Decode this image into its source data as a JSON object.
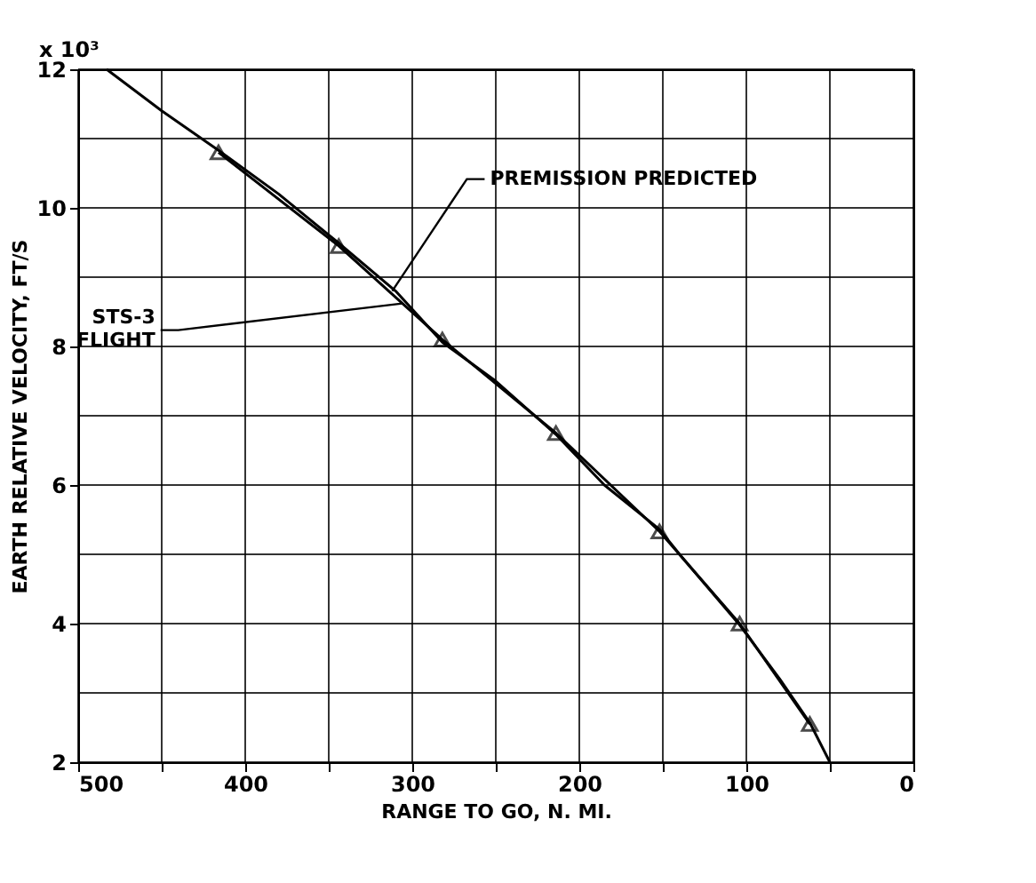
{
  "chart_data": {
    "type": "line",
    "xlabel": "RANGE TO GO, N. MI.",
    "ylabel": "EARTH RELATIVE VELOCITY, FT/S",
    "xlim": [
      500,
      0
    ],
    "ylim": [
      2,
      12
    ],
    "xticks": [
      500,
      {
        "value": 450,
        "label": null
      },
      400,
      {
        "value": 350,
        "label": null
      },
      300,
      {
        "value": 250,
        "label": null
      },
      200,
      {
        "value": 150,
        "label": null
      },
      100,
      {
        "value": 50,
        "label": null
      },
      0
    ],
    "yticks": [
      2,
      {
        "value": 3,
        "label": null
      },
      4,
      {
        "value": 5,
        "label": null
      },
      6,
      {
        "value": 7,
        "label": null
      },
      8,
      {
        "value": 9,
        "label": null
      },
      10,
      {
        "value": 11,
        "label": null
      },
      12
    ],
    "grid": true,
    "series": [
      {
        "color": "#000000",
        "marker": "none",
        "x": [
          483,
          450,
          416,
          380,
          344,
          310,
          282,
          250,
          214,
          185,
          152,
          140,
          104,
          80,
          62,
          50
        ],
        "values": [
          12,
          11.4,
          10.83,
          10.2,
          9.49,
          8.8,
          8.06,
          7.5,
          6.73,
          6.0,
          5.36,
          5.0,
          3.98,
          3.2,
          2.57,
          2.0
        ]
      },
      {
        "color": "#000000",
        "marker": "triangle",
        "x": [
          416,
          344,
          282,
          214,
          152,
          104,
          62
        ],
        "values": [
          10.8,
          9.45,
          8.1,
          6.75,
          5.33,
          4.0,
          2.55
        ]
      }
    ],
    "annotations": [
      "x 10³",
      {
        "text": "PREMISSION PREDICTED",
        "x": 312,
        "y": 8.8
      },
      {
        "text": "STS-3\nFLIGHT",
        "x": 306,
        "y": 8.62
      }
    ]
  }
}
